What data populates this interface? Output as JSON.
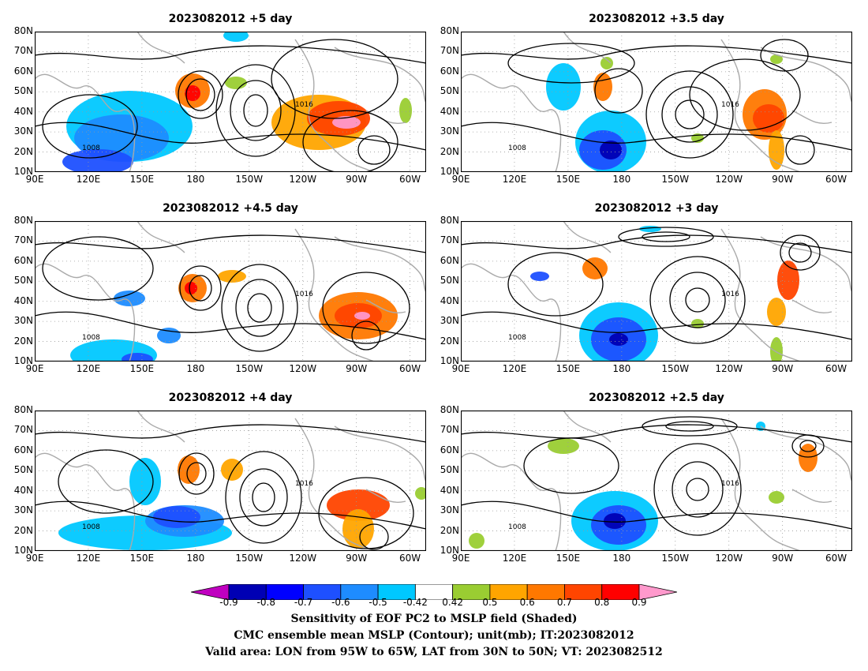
{
  "panels": [
    {
      "title": "2023082012  +5 day",
      "pos": "left-1"
    },
    {
      "title": "2023082012  +3.5 day",
      "pos": "right-1"
    },
    {
      "title": "2023082012  +4.5 day",
      "pos": "left-2"
    },
    {
      "title": "2023082012  +3 day",
      "pos": "right-2"
    },
    {
      "title": "2023082012  +4 day",
      "pos": "left-3"
    },
    {
      "title": "2023082012  +2.5 day",
      "pos": "right-3"
    }
  ],
  "lat_labels": [
    "80N",
    "70N",
    "60N",
    "50N",
    "40N",
    "30N",
    "20N",
    "10N"
  ],
  "lon_labels": [
    "90E",
    "120E",
    "150E",
    "180",
    "150W",
    "120W",
    "90W",
    "60W"
  ],
  "contour_label": "1008",
  "contour_label_alt": "1016",
  "colorbar": {
    "labels": [
      "-0.9",
      "-0.8",
      "-0.7",
      "-0.6",
      "-0.5",
      "-0.42",
      "0.42",
      "0.5",
      "0.6",
      "0.7",
      "0.8",
      "0.9"
    ],
    "colors": [
      "#0000b4",
      "#0000ff",
      "#1e50ff",
      "#1e8cff",
      "#00c8ff",
      "#ffffff",
      "#9acd32",
      "#ffa500",
      "#ff7800",
      "#ff4500",
      "#ff0000"
    ],
    "low_end": "#c000c0",
    "high_end": "#ff99cc"
  },
  "caption": {
    "line1": "Sensitivity of EOF PC2 to MSLP field (Shaded)",
    "line2": "CMC ensemble mean MSLP (Contour); unit(mb); IT:2023082012",
    "line3": "Valid area: LON from 95W to 65W, LAT from 30N to 50N; VT: 2023082512"
  }
}
